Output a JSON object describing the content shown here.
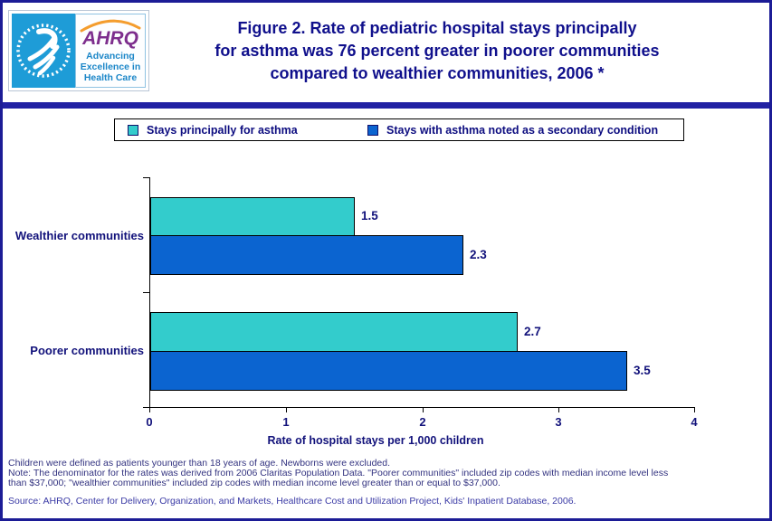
{
  "header": {
    "title_lines": [
      "Figure 2. Rate of pediatric hospital stays principally",
      "for asthma was 76 percent greater in poorer communities",
      "compared to wealthier communities, 2006 *"
    ],
    "logo": {
      "ahrq_acronym": "AHRQ",
      "tagline_lines": [
        "Advancing",
        "Excellence in",
        "Health Care"
      ]
    }
  },
  "chart_data": {
    "type": "bar",
    "orientation": "horizontal",
    "title": "Figure 2. Rate of pediatric hospital stays principally for asthma was 76 percent greater in poorer communities compared to wealthier communities, 2006 *",
    "categories": [
      "Wealthier communities",
      "Poorer communities"
    ],
    "series": [
      {
        "name": "Stays principally for asthma",
        "color": "#33CCCC",
        "values": [
          1.5,
          2.7
        ]
      },
      {
        "name": "Stays with asthma noted as a secondary condition",
        "color": "#0B64D0",
        "values": [
          2.3,
          3.5
        ]
      }
    ],
    "xlabel": "Rate of hospital stays per 1,000 children",
    "xlim": [
      0,
      4
    ],
    "xticks": [
      "0",
      "1",
      "2",
      "3",
      "4"
    ],
    "grid": false,
    "legend_position": "top",
    "data_labels": [
      "1.5",
      "2.3",
      "2.7",
      "3.5"
    ]
  },
  "footnotes": {
    "line1": "Children were defined as patients younger than 18 years of age. Newborns were excluded.",
    "line2": "Note: The denominator for the rates was derived from 2006 Claritas Population Data. \"Poorer communities\" included zip codes with median income level less",
    "line3": "than $37,000; \"wealthier communities\" included zip codes with median income level greater than or equal to $37,000.",
    "source": "Source: AHRQ, Center for Delivery, Organization, and Markets, Healthcare Cost and Utilization Project, Kids' Inpatient Database, 2006."
  },
  "colors": {
    "navy_text": "#12127B",
    "title_navy": "#10108C",
    "teal_bar": "#33CCCC",
    "blue_bar": "#0B64D0",
    "hhs_blue": "#1E9CD7",
    "ahrq_purple": "#7D2E8D",
    "arc_orange": "#F49D2E",
    "tagline_blue": "#1B86C8",
    "border_navy": "#1C1C96",
    "divider_navy": "#2121A3"
  }
}
